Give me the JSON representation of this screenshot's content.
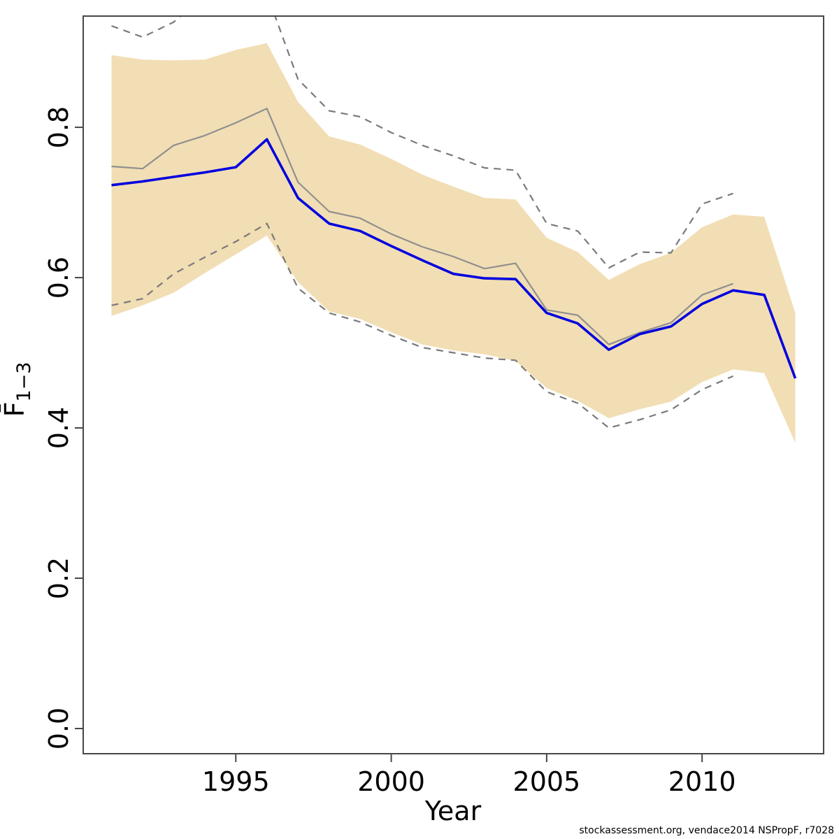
{
  "footer": {
    "text": "stockassessment.org, vendace2014  NSPropF, r7028"
  },
  "chart_data": {
    "type": "line",
    "title": "",
    "xlabel": "Year",
    "ylabel_main": "F̄",
    "ylabel_sub": "1−3",
    "xlim": [
      1990.09,
      2013.91
    ],
    "ylim": [
      -0.0335,
      0.948
    ],
    "grid": false,
    "legend": "none",
    "x_ticks": [
      1995,
      2000,
      2005,
      2010
    ],
    "y_ticks": [
      "0.0",
      "0.2",
      "0.4",
      "0.6",
      "0.8"
    ],
    "y_tick_values": [
      0.0,
      0.2,
      0.4,
      0.6,
      0.8
    ],
    "x": [
      1991,
      1992,
      1993,
      1994,
      1995,
      1996,
      1997,
      1998,
      1999,
      2000,
      2001,
      2002,
      2003,
      2004,
      2005,
      2006,
      2007,
      2008,
      2009,
      2010,
      2011,
      2012,
      2013
    ],
    "band": {
      "name": "fbar-confidence-band",
      "color": "#F2DEB4",
      "upper": [
        0.896,
        0.89,
        0.889,
        0.89,
        0.903,
        0.912,
        0.834,
        0.788,
        0.777,
        0.758,
        0.737,
        0.721,
        0.706,
        0.704,
        0.653,
        0.634,
        0.597,
        0.618,
        0.633,
        0.667,
        0.684,
        0.681,
        0.553
      ],
      "lower": [
        0.549,
        0.563,
        0.58,
        0.606,
        0.631,
        0.656,
        0.594,
        0.555,
        0.545,
        0.527,
        0.511,
        0.503,
        0.498,
        0.489,
        0.453,
        0.436,
        0.413,
        0.425,
        0.435,
        0.461,
        0.478,
        0.473,
        0.38
      ]
    },
    "series": [
      {
        "name": "reference-run-ci-upper",
        "color": "#7A7A7A",
        "style": "dashed",
        "width": 2.2,
        "values": [
          0.935,
          0.92,
          0.94,
          0.975,
          1.0,
          0.978,
          0.864,
          0.822,
          0.814,
          0.793,
          0.776,
          0.762,
          0.746,
          0.743,
          0.672,
          0.662,
          0.613,
          0.634,
          0.633,
          0.698,
          0.712,
          null,
          null
        ]
      },
      {
        "name": "reference-run-ci-lower",
        "color": "#7A7A7A",
        "style": "dashed",
        "width": 2.2,
        "values": [
          0.563,
          0.572,
          0.605,
          0.627,
          0.648,
          0.672,
          0.586,
          0.553,
          0.541,
          0.523,
          0.507,
          0.5,
          0.493,
          0.49,
          0.448,
          0.433,
          0.4,
          0.411,
          0.424,
          0.451,
          0.469,
          null,
          null
        ]
      },
      {
        "name": "reference-run-estimate",
        "color": "#8F8F8F",
        "style": "solid",
        "width": 2.2,
        "values": [
          0.748,
          0.745,
          0.776,
          0.789,
          0.806,
          0.825,
          0.727,
          0.688,
          0.679,
          0.658,
          0.641,
          0.628,
          0.612,
          0.619,
          0.557,
          0.55,
          0.511,
          0.527,
          0.54,
          0.577,
          0.592,
          null,
          null
        ]
      },
      {
        "name": "fbar-estimate",
        "color": "#0202DE",
        "style": "solid",
        "width": 3.6,
        "values": [
          0.723,
          0.728,
          0.734,
          0.74,
          0.747,
          0.784,
          0.706,
          0.672,
          0.662,
          0.642,
          0.623,
          0.605,
          0.599,
          0.598,
          0.553,
          0.539,
          0.504,
          0.525,
          0.535,
          0.565,
          0.583,
          0.577,
          0.466
        ]
      }
    ],
    "frame_color": "#474747"
  }
}
